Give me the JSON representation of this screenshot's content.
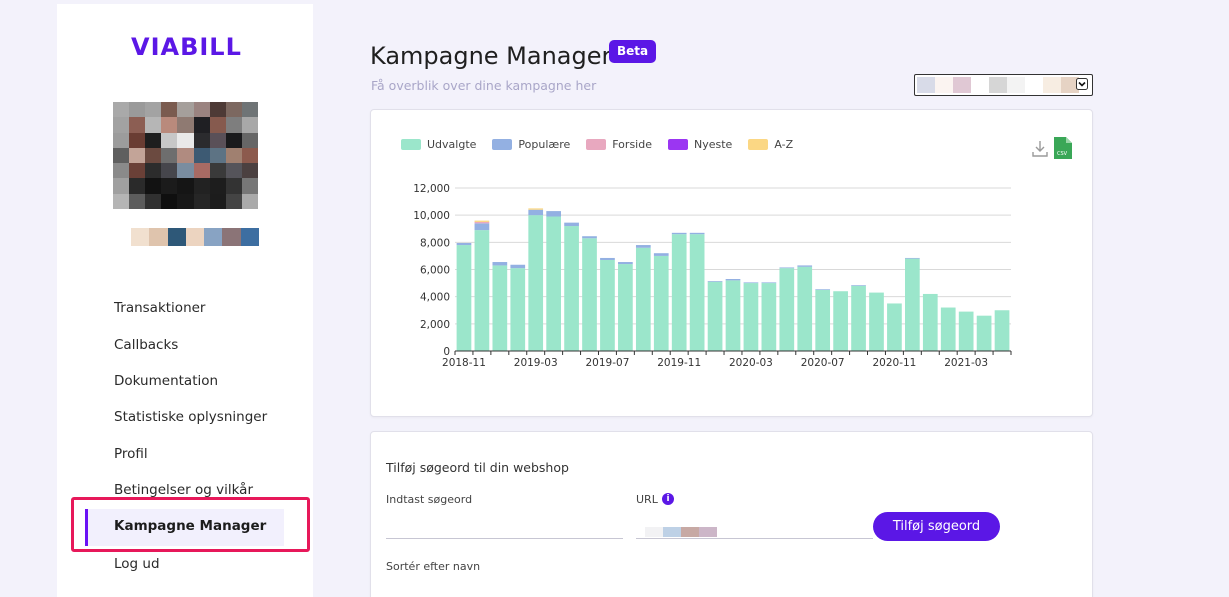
{
  "brand": {
    "logo_text": "VIABILL",
    "accent": "#5b17e6"
  },
  "sidebar": {
    "items": [
      {
        "label": "Transaktioner"
      },
      {
        "label": "Callbacks"
      },
      {
        "label": "Dokumentation"
      },
      {
        "label": "Statistiske oplysninger"
      },
      {
        "label": "Profil"
      },
      {
        "label": "Betingelser og vilkår"
      },
      {
        "label": "Kampagne Manager",
        "active": true
      },
      {
        "label": "Log ud"
      }
    ]
  },
  "header": {
    "title": "Kampagne Manager",
    "badge": "Beta",
    "subtitle": "Få overblik over dine kampagne her"
  },
  "chart_data": {
    "type": "bar",
    "stacked": true,
    "legend_position": "top-left",
    "grid": true,
    "ylim": [
      0,
      12000
    ],
    "yticks": [
      "0",
      "2,000",
      "4,000",
      "6,000",
      "8,000",
      "10,000",
      "12,000"
    ],
    "xtick_labels": [
      "2018-11",
      "2019-03",
      "2019-07",
      "2019-11",
      "2020-03",
      "2020-07",
      "2020-11",
      "2021-03"
    ],
    "series": [
      {
        "name": "Udvalgte",
        "color": "#9be6cb",
        "values": [
          7800,
          8900,
          6300,
          6100,
          10000,
          9900,
          9200,
          8300,
          6700,
          6400,
          7600,
          7000,
          8600,
          8600,
          5100,
          5200,
          5000,
          5000,
          6100,
          6200,
          4500,
          4400,
          4800,
          4300,
          3500,
          6800,
          4200,
          3200,
          2900,
          2600,
          3000
        ]
      },
      {
        "name": "Populære",
        "color": "#93b0e2",
        "values": [
          150,
          500,
          250,
          250,
          400,
          400,
          250,
          150,
          150,
          150,
          200,
          200,
          100,
          100,
          50,
          100,
          50,
          50,
          50,
          100,
          50,
          0,
          50,
          0,
          0,
          50,
          0,
          0,
          0,
          0,
          0
        ]
      },
      {
        "name": "Forside",
        "color": "#e8a8bf",
        "values": [
          0,
          100,
          0,
          0,
          0,
          0,
          0,
          0,
          0,
          0,
          0,
          0,
          0,
          0,
          0,
          0,
          0,
          0,
          0,
          0,
          0,
          0,
          0,
          0,
          0,
          0,
          0,
          0,
          0,
          0,
          0
        ]
      },
      {
        "name": "Nyeste",
        "color": "#9b36f2",
        "values": [
          0,
          0,
          0,
          0,
          0,
          0,
          0,
          0,
          0,
          0,
          0,
          0,
          0,
          0,
          0,
          0,
          0,
          0,
          0,
          0,
          0,
          0,
          0,
          0,
          0,
          0,
          0,
          0,
          0,
          0,
          0
        ]
      },
      {
        "name": "A-Z",
        "color": "#fbd784",
        "values": [
          0,
          100,
          0,
          0,
          100,
          0,
          0,
          0,
          0,
          0,
          0,
          0,
          0,
          0,
          0,
          0,
          0,
          0,
          0,
          0,
          0,
          0,
          0,
          0,
          0,
          0,
          0,
          0,
          0,
          0,
          0
        ]
      }
    ]
  },
  "form": {
    "title": "Tilføj søgeord til din webshop",
    "keyword_label": "Indtast søgeord",
    "keyword_value": "",
    "url_label": "URL",
    "add_button": "Tilføj søgeord",
    "sort_label": "Sortér efter navn"
  },
  "icons": {
    "download": "download-icon",
    "csv": "csv-file-icon",
    "info": "info-icon",
    "dropdown": "chevron-down-icon"
  }
}
